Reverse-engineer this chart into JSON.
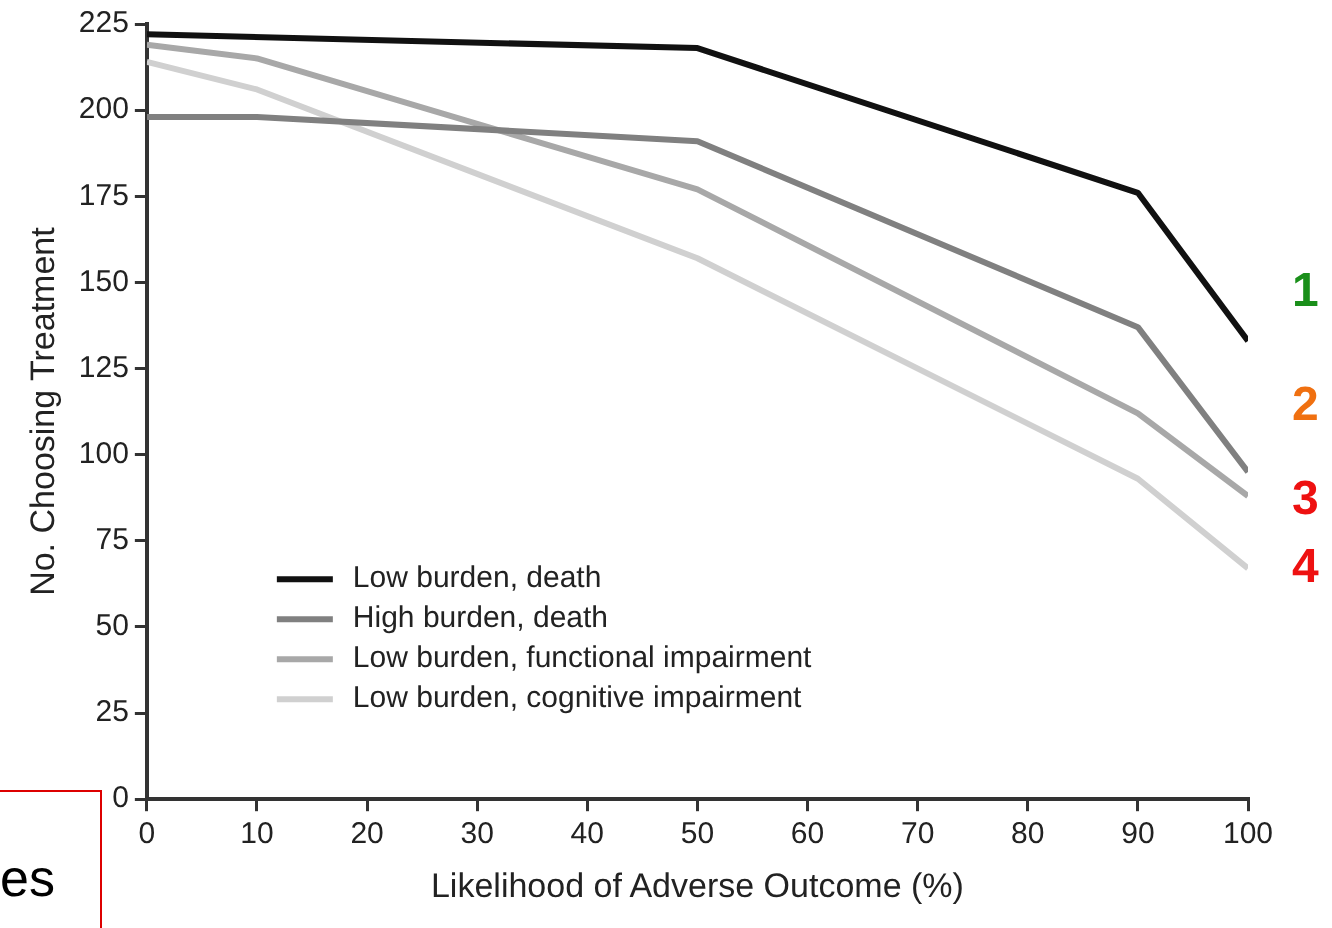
{
  "chart_data": {
    "type": "line",
    "xlabel": "Likelihood of Adverse Outcome (%)",
    "ylabel": "No. Choosing Treatment",
    "xlim": [
      0,
      100
    ],
    "xticks": [
      0,
      10,
      20,
      30,
      40,
      50,
      60,
      70,
      80,
      90,
      100
    ],
    "ylim": [
      0,
      225
    ],
    "yticks": [
      0,
      25,
      50,
      75,
      100,
      125,
      150,
      175,
      200,
      225
    ],
    "grid": false,
    "legend": "bottom left",
    "marker": "none",
    "line_style": "solid",
    "series": [
      {
        "name": "Low burden, death",
        "color": "#111111",
        "x": [
          0,
          50,
          90,
          100
        ],
        "values": [
          222,
          218,
          176,
          133
        ]
      },
      {
        "name": "High burden, death",
        "color": "#808080",
        "x": [
          0,
          10,
          50,
          90,
          100
        ],
        "values": [
          198,
          198,
          191,
          137,
          95
        ]
      },
      {
        "name": "Low burden, functional impairment",
        "color": "#a8a8a8",
        "x": [
          0,
          10,
          50,
          90,
          100
        ],
        "values": [
          219,
          215,
          177,
          112,
          88
        ]
      },
      {
        "name": "Low burden, cognitive impairment",
        "color": "#d0d0d0",
        "x": [
          0,
          10,
          50,
          90,
          100
        ],
        "values": [
          214,
          206,
          157,
          93,
          67
        ]
      }
    ],
    "annotations": [
      "1",
      "2",
      "3",
      "4",
      "es"
    ]
  }
}
